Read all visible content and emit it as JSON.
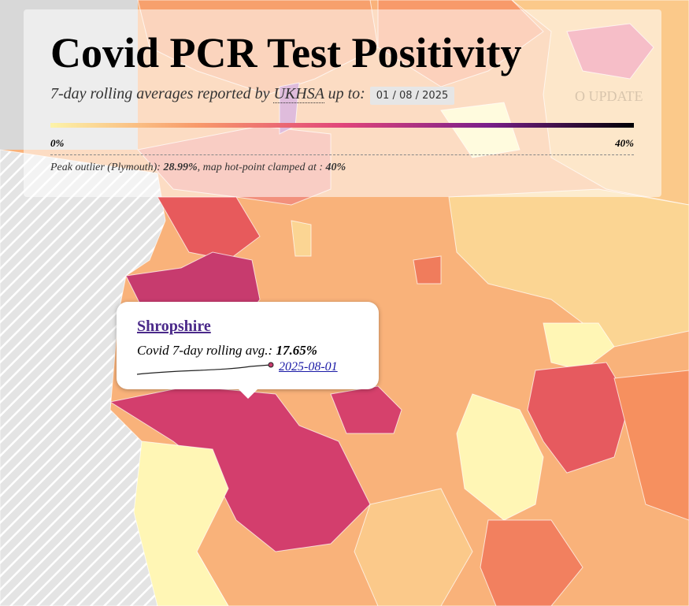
{
  "header": {
    "title": "Covid PCR Test Positivity",
    "subtitle": "7-day rolling averages reported by",
    "source": "UKHSA",
    "subtitle_end": "up to:",
    "date_input": "01 / 08 / 2025",
    "update_button": "O UPDATE"
  },
  "legend": {
    "colors": [
      "#fcf3a8",
      "#f89a6a",
      "#e1457a",
      "#7a1f8a",
      "#000004"
    ],
    "ticks": [
      {
        "value": 0,
        "label": "0%"
      },
      {
        "value": 40,
        "label": "40%"
      }
    ],
    "range": [
      0,
      40
    ]
  },
  "note": {
    "prefix": "Peak outlier (Plymouth):",
    "peak": "28.99%",
    "middle": ", map hot-point clamped at :",
    "clamp": "40%"
  },
  "tooltip": {
    "area": "Shropshire",
    "metric": "Covid 7-day rolling avg.:",
    "value": "17.65%",
    "date": "2025-08-01"
  }
}
